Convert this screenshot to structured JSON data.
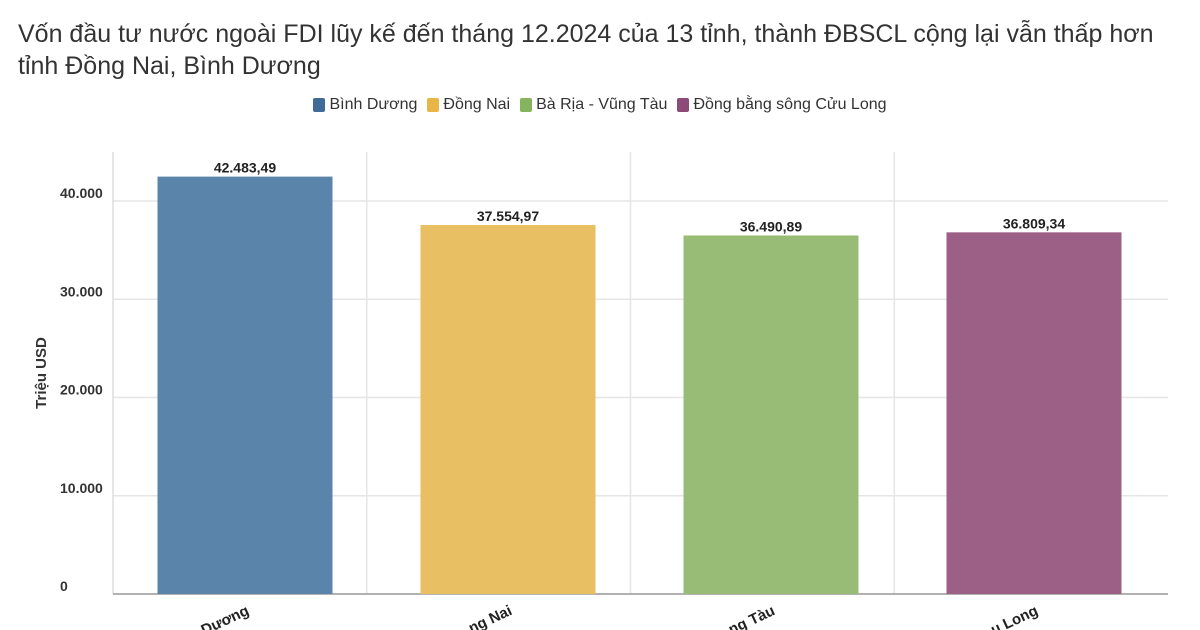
{
  "title": "Vốn đầu tư nước ngoài FDI lũy kế đến tháng 12.2024 của 13 tỉnh, thành ĐBSCL cộng lại vẫn thấp hơn tỉnh Đồng Nai, Bình Dương",
  "chart_data": {
    "type": "bar",
    "ylabel": "Triệu USD",
    "ylim": [
      0,
      45000
    ],
    "yticks": [
      0,
      10000,
      20000,
      30000,
      40000
    ],
    "ytick_labels": [
      "0",
      "10.000",
      "20.000",
      "30.000",
      "40.000"
    ],
    "grid": true,
    "legend_position": "top-center",
    "categories": [
      "Bình Dương",
      "Đồng Nai",
      "Bà Rịa - Vũng Tàu",
      "Đồng bằng sông Cửu Long"
    ],
    "xtick_labels_visible": [
      "Dương",
      "ng Nai",
      "ng Tàu",
      "u Long"
    ],
    "values": [
      42483.49,
      37554.97,
      36490.89,
      36809.34
    ],
    "value_labels": [
      "42.483,49",
      "37.554,97",
      "36.490,89",
      "36.809,34"
    ],
    "colors": [
      "#5b84aa",
      "#e8bf62",
      "#98bc75",
      "#9c5f85"
    ],
    "legend_colors": [
      "#3f6b96",
      "#e8b647",
      "#86b45e",
      "#8e4a78"
    ]
  }
}
